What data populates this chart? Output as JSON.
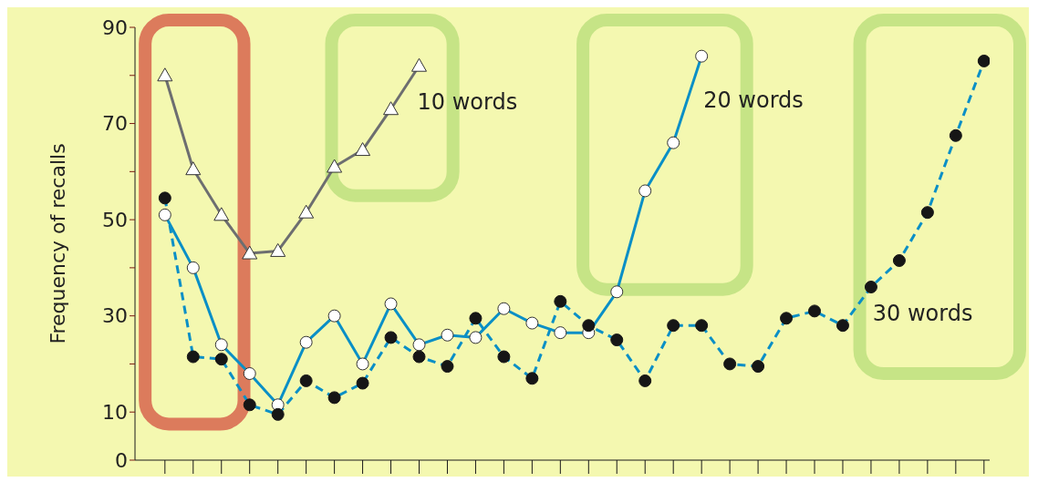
{
  "chart_data": {
    "type": "line",
    "ylabel": "Frequency of recalls",
    "categories": [
      null,
      null,
      null,
      null,
      null,
      null,
      null,
      null,
      null,
      null,
      null,
      null,
      null,
      null,
      null,
      null,
      null,
      null,
      null,
      null,
      null,
      null,
      null,
      null,
      null,
      null,
      null,
      null,
      null,
      null
    ],
    "ylim": [
      0,
      90
    ],
    "yticks": [
      0,
      10,
      {
        "value": 20,
        "label": null
      },
      30,
      {
        "value": 40,
        "label": null
      },
      50,
      {
        "value": 60,
        "label": null
      },
      70,
      {
        "value": 80,
        "label": null
      },
      90
    ],
    "series": [
      {
        "name": "10 words",
        "color": "#6d6e70",
        "marker": "triangle",
        "line_style": "solid",
        "values": [
          80,
          60.5,
          51,
          43,
          43.5,
          51.5,
          61,
          64.5,
          73,
          82,
          null,
          null,
          null,
          null,
          null,
          null,
          null,
          null,
          null,
          null,
          null,
          null,
          null,
          null,
          null,
          null,
          null,
          null,
          null,
          null
        ]
      },
      {
        "name": "20 words",
        "color": "#0a8fc6",
        "marker": "circle",
        "line_style": "solid",
        "values": [
          51,
          40,
          24,
          18,
          11.5,
          24.5,
          30,
          20,
          32.5,
          24,
          26,
          25.5,
          31.5,
          28.5,
          26.5,
          26.5,
          35,
          56,
          66,
          84,
          null,
          null,
          null,
          null,
          null,
          null,
          null,
          null,
          null,
          null
        ]
      },
      {
        "name": "30 words",
        "color": "#0a8fc6",
        "marker": "circle",
        "line_style": "dashed",
        "values": [
          54.5,
          21.5,
          21,
          11.5,
          9.5,
          16.5,
          13,
          16,
          25.5,
          21.5,
          19.5,
          29.5,
          21.5,
          17,
          33,
          28,
          25,
          16.5,
          28,
          28,
          20,
          19.5,
          29.5,
          31,
          28,
          36,
          41.5,
          51.5,
          67.5,
          83
        ]
      }
    ]
  }
}
